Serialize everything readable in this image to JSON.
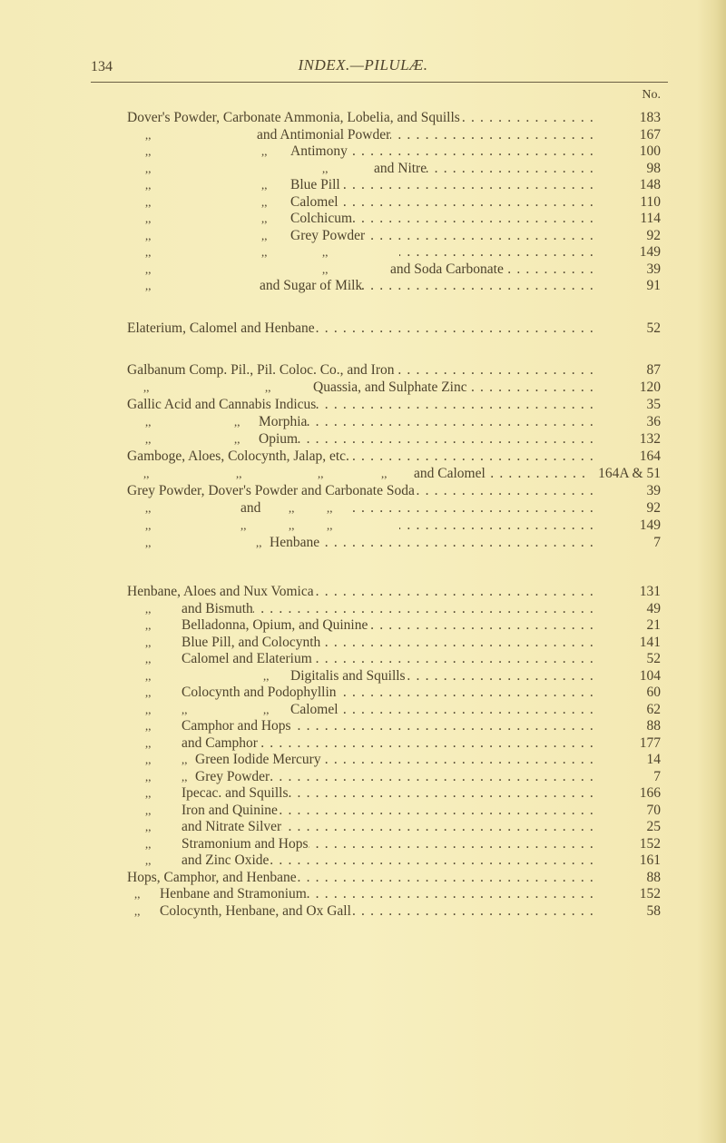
{
  "header": {
    "page_number": "134",
    "title": "INDEX.—PILULÆ.",
    "column_label": "No."
  },
  "rows": [
    {
      "marks": [],
      "text": "Dover's Powder, Carbonate Ammonia, Lobelia, and Squills",
      "no": "183"
    },
    {
      "marks": [
        ",,"
      ],
      "text": "and Antimonial Powder",
      "no": "167"
    },
    {
      "marks": [
        ",,",
        ",,"
      ],
      "text": "Antimony",
      "no": "100"
    },
    {
      "marks": [
        ",,",
        ",,"
      ],
      "text": "and Nitre",
      "no": "98"
    },
    {
      "marks": [
        ",,",
        ",,"
      ],
      "text": "Blue Pill",
      "no": "148"
    },
    {
      "marks": [
        ",,",
        ",,"
      ],
      "text": "Calomel",
      "no": "110"
    },
    {
      "marks": [
        ",,",
        ",,"
      ],
      "text": "Colchicum",
      "no": "114"
    },
    {
      "marks": [
        ",,",
        ",,"
      ],
      "text": "Grey Powder",
      "no": "92"
    },
    {
      "marks": [
        ",,",
        ",,",
        ",,"
      ],
      "text": "",
      "no": "149"
    },
    {
      "marks": [
        ",,",
        ",,"
      ],
      "text": "and Soda Carbonate",
      "no": "39"
    },
    {
      "marks": [
        ",,"
      ],
      "text": "and Sugar of Milk",
      "no": "91"
    },
    {
      "marks": [],
      "text": "Elaterium, Calomel and Henbane",
      "no": "52"
    },
    {
      "marks": [],
      "text": "Galbanum Comp. Pil., Pil. Coloc. Co., and Iron",
      "no": "87"
    },
    {
      "marks": [
        ",,",
        ",,"
      ],
      "text": "Quassia, and Sulphate Zinc",
      "no": "120"
    },
    {
      "marks": [],
      "text": "Gallic Acid and Cannabis Indicus",
      "no": "35"
    },
    {
      "marks": [
        ",,",
        ",,"
      ],
      "text": "Morphia",
      "no": "36"
    },
    {
      "marks": [
        ",,",
        ",,"
      ],
      "text": "Opium",
      "no": "132"
    },
    {
      "marks": [],
      "text": "Gamboge, Aloes, Colocynth, Jalap, etc.",
      "no": "164"
    },
    {
      "marks": [
        ",,",
        ",,",
        ",,",
        ",,"
      ],
      "text": "and Calomel",
      "no": "164A & 51"
    },
    {
      "marks": [],
      "text": "Grey Powder, Dover's Powder and Carbonate Soda",
      "no": "39"
    },
    {
      "marks": [
        ",,",
        ",,",
        ",,"
      ],
      "text": "and",
      "no": "92"
    },
    {
      "marks": [
        ",,",
        ",,",
        ",,",
        ",,"
      ],
      "text": "",
      "no": "149"
    },
    {
      "marks": [
        ",,",
        ",,"
      ],
      "text": "Henbane",
      "no": "7"
    },
    {
      "marks": [],
      "text": "Henbane, Aloes and Nux Vomica",
      "no": "131"
    },
    {
      "marks": [
        ",,"
      ],
      "text": "and Bismuth",
      "no": "49"
    },
    {
      "marks": [
        ",,"
      ],
      "text": "Belladonna, Opium, and Quinine",
      "no": "21"
    },
    {
      "marks": [
        ",,"
      ],
      "text": "Blue Pill, and Colocynth",
      "no": "141"
    },
    {
      "marks": [
        ",,"
      ],
      "text": "Calomel and Elaterium",
      "no": "52"
    },
    {
      "marks": [
        ",,",
        ",,"
      ],
      "text": "Digitalis and Squills",
      "no": "104"
    },
    {
      "marks": [
        ",,"
      ],
      "text": "Colocynth and Podophyllin",
      "no": "60"
    },
    {
      "marks": [
        ",,",
        ",,",
        ",,"
      ],
      "text": "Calomel",
      "no": "62"
    },
    {
      "marks": [
        ",,"
      ],
      "text": "Camphor and Hops",
      "no": "88"
    },
    {
      "marks": [
        ",,"
      ],
      "text": "and Camphor",
      "no": "177"
    },
    {
      "marks": [
        ",,",
        ",,"
      ],
      "text": "Green Iodide Mercury",
      "no": "14"
    },
    {
      "marks": [
        ",,",
        ",,"
      ],
      "text": "Grey Powder",
      "no": "7"
    },
    {
      "marks": [
        ",,"
      ],
      "text": "Ipecac. and Squills",
      "no": "166"
    },
    {
      "marks": [
        ",,"
      ],
      "text": "Iron and Quinine",
      "no": "70"
    },
    {
      "marks": [
        ",,"
      ],
      "text": "and Nitrate Silver",
      "no": "25"
    },
    {
      "marks": [
        ",,"
      ],
      "text": "Stramonium and Hops",
      "no": "152"
    },
    {
      "marks": [
        ",,"
      ],
      "text": "and Zinc Oxide",
      "no": "161"
    },
    {
      "marks": [],
      "text": "Hops, Camphor, and Henbane",
      "no": "88"
    },
    {
      "marks": [
        ",,"
      ],
      "text": "Henbane and Stramonium",
      "no": "152"
    },
    {
      "marks": [
        ",,"
      ],
      "text": "Colocynth, Henbane, and Ox Gall",
      "no": "58"
    }
  ]
}
